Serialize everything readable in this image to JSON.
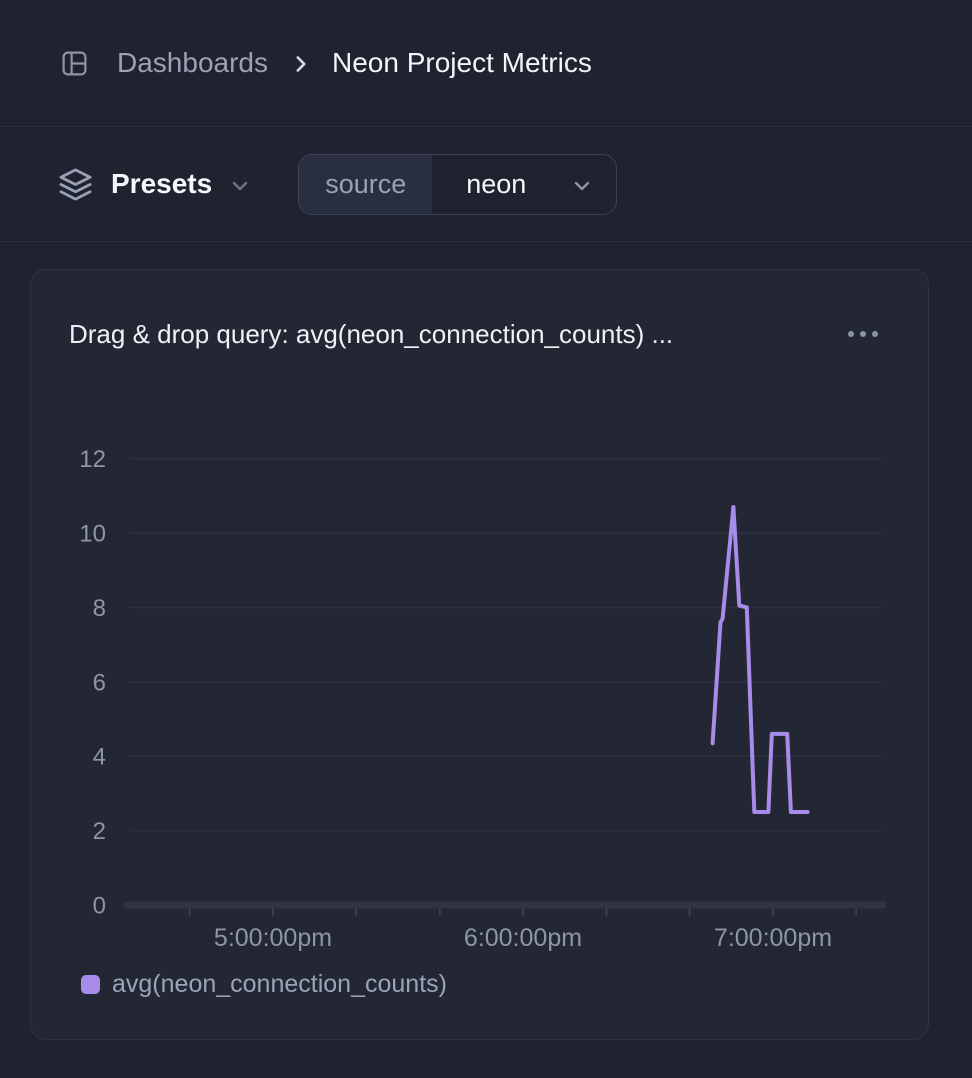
{
  "header": {
    "breadcrumb": {
      "root": "Dashboards",
      "current": "Neon Project Metrics"
    }
  },
  "toolbar": {
    "presets_label": "Presets",
    "filter": {
      "key": "source",
      "value": "neon"
    }
  },
  "card": {
    "title": "Drag & drop query: avg(neon_connection_counts) ...",
    "legend_label": "avg(neon_connection_counts)"
  },
  "colors": {
    "accent_purple": "#a78bea",
    "page_bg": "#20232f",
    "card_bg": "#232734",
    "border": "#2d3342",
    "gridline": "#2b3140",
    "axis_bar": "#2e3442",
    "axis_text": "#8d95a8",
    "text_primary": "#eef1f6",
    "text_secondary": "#9aa2b6"
  },
  "chart_data": {
    "type": "line",
    "title": "Drag & drop query: avg(neon_connection_counts) ...",
    "xlabel": "",
    "ylabel": "",
    "grid": true,
    "legend_position": "bottom-left",
    "y_axis": {
      "ticks": [
        0,
        2,
        4,
        6,
        8,
        10,
        12
      ],
      "range": [
        0,
        12.4
      ]
    },
    "x_axis": {
      "unit": "minutes_after_4pm",
      "range": [
        25,
        207
      ],
      "ticks": [
        40,
        60,
        80,
        100,
        120,
        140,
        160,
        180,
        200
      ],
      "labeled_ticks": [
        {
          "m": 60,
          "label": "5:00:00pm"
        },
        {
          "m": 120,
          "label": "6:00:00pm"
        },
        {
          "m": 180,
          "label": "7:00:00pm"
        }
      ]
    },
    "series": [
      {
        "name": "avg(neon_connection_counts)",
        "color": "#a78bea",
        "points": [
          {
            "time": "6:45pm",
            "m": 165.5,
            "value": 4.35
          },
          {
            "time": "6:47pm",
            "m": 167.4,
            "value": 7.6
          },
          {
            "time": "6:48pm",
            "m": 167.9,
            "value": 7.7
          },
          {
            "time": "6:50pm",
            "m": 170.5,
            "value": 10.7
          },
          {
            "time": "6:52pm",
            "m": 171.9,
            "value": 8.05
          },
          {
            "time": "6:54pm",
            "m": 173.7,
            "value": 8.0
          },
          {
            "time": "6:55pm",
            "m": 175.5,
            "value": 2.5
          },
          {
            "time": "6:59pm",
            "m": 178.9,
            "value": 2.5
          },
          {
            "time": "7:00pm",
            "m": 179.7,
            "value": 4.6
          },
          {
            "time": "7:03pm",
            "m": 183.4,
            "value": 4.6
          },
          {
            "time": "7:04pm",
            "m": 184.3,
            "value": 2.5
          },
          {
            "time": "7:08pm",
            "m": 188.3,
            "value": 2.5
          }
        ]
      }
    ]
  }
}
